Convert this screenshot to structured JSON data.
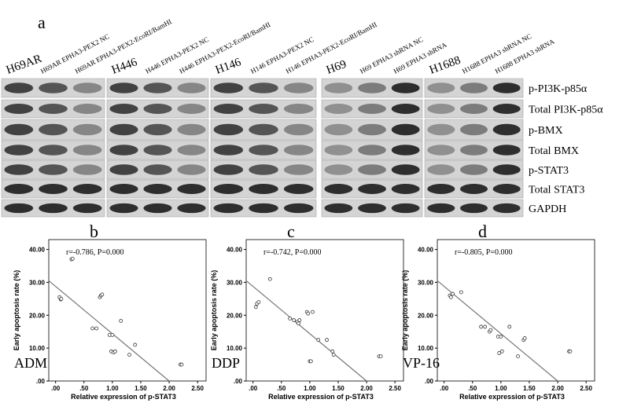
{
  "panel_label": "a",
  "blot": {
    "groups": [
      {
        "headers": [
          "H69AR",
          "H69AR EPHA3-PEX2 NC",
          "H69AR EPHA3-PEX2-EcoRI/BamHI"
        ]
      },
      {
        "headers": [
          "H446",
          "H446 EPHA3-PEX2 NC",
          "H446 EPHA3-PEX2-EcoRI/BamHI"
        ]
      },
      {
        "headers": [
          "H146",
          "H146 EPHA3-PEX2 NC",
          "H146 EPHA3-PEX2-EcoRI/BamHI"
        ]
      },
      {
        "headers": [
          "H69",
          "H69 EPHA3 shRNA NC",
          "H69 EPHA3 shRNA"
        ]
      },
      {
        "headers": [
          "H1688",
          "H1688 EPHA3 shRNA NC",
          "H1688 EPHA3 shRNA"
        ]
      }
    ],
    "rows": [
      "p-PI3K-p85α",
      "Total PI3K-p85α",
      "p-BMX",
      "Total BMX",
      "p-STAT3",
      "Total STAT3",
      "GAPDH"
    ]
  },
  "chart_data": [
    {
      "type": "scatter",
      "title": "b",
      "drug": "ADM",
      "annotation": "r=-0.786, P=0.000",
      "x_label": "Relative expression of p-STAT3",
      "y_label": "Early apoptosis rate (%)",
      "x": [
        0.07,
        0.09,
        0.1,
        0.28,
        0.3,
        0.65,
        0.72,
        0.78,
        0.8,
        0.82,
        0.95,
        0.98,
        1.0,
        1.02,
        1.05,
        1.15,
        1.3,
        1.4,
        2.2,
        2.22
      ],
      "values": [
        25.5,
        24.8,
        25,
        37,
        37.2,
        16,
        16,
        25.5,
        26,
        26.3,
        14,
        9,
        14,
        8.7,
        9,
        18.3,
        8,
        11,
        5,
        5
      ],
      "fit_line": {
        "x": [
          -0.12,
          2.0
        ],
        "y": [
          30.5,
          0
        ]
      },
      "xlim": [
        -0.12,
        2.65
      ],
      "ylim": [
        0,
        43
      ],
      "xticks": [
        {
          "value": 0,
          "label": ".00"
        },
        {
          "value": 0.5,
          "label": ".50"
        },
        {
          "value": 1,
          "label": "1.00"
        },
        {
          "value": 1.5,
          "label": "1.50"
        },
        {
          "value": 2,
          "label": "2.00"
        },
        {
          "value": 2.5,
          "label": "2.50"
        }
      ],
      "yticks": [
        {
          "value": 0,
          "label": ".00"
        },
        {
          "value": 10,
          "label": "10.00"
        },
        {
          "value": 20,
          "label": "20.00"
        },
        {
          "value": 30,
          "label": "30.00"
        },
        {
          "value": 40,
          "label": "40.00"
        }
      ]
    },
    {
      "type": "scatter",
      "title": "c",
      "drug": "DDP",
      "annotation": "r=-0.742, P=0.000",
      "x_label": "Relative expression of p-STAT3",
      "y_label": "Early apoptosis rate (%)",
      "x": [
        0.05,
        0.07,
        0.1,
        0.3,
        0.65,
        0.72,
        0.78,
        0.8,
        0.82,
        0.95,
        0.97,
        1.0,
        1.02,
        1.05,
        1.15,
        1.3,
        1.4,
        1.42,
        2.22,
        2.25
      ],
      "values": [
        22.5,
        23.5,
        24,
        31,
        19,
        18.5,
        18,
        17.5,
        18.5,
        21,
        20.5,
        6,
        6,
        21,
        12.5,
        12.5,
        9,
        8,
        7.5,
        7.5
      ],
      "fit_line": {
        "x": [
          -0.12,
          2.0
        ],
        "y": [
          30.5,
          0
        ]
      },
      "xlim": [
        -0.12,
        2.65
      ],
      "ylim": [
        0,
        43
      ],
      "xticks": [
        {
          "value": 0,
          "label": ".00"
        },
        {
          "value": 0.5,
          "label": ".50"
        },
        {
          "value": 1,
          "label": "1.00"
        },
        {
          "value": 1.5,
          "label": "1.50"
        },
        {
          "value": 2,
          "label": "2.00"
        },
        {
          "value": 2.5,
          "label": "2.50"
        }
      ],
      "yticks": [
        {
          "value": 0,
          "label": ".00"
        },
        {
          "value": 10,
          "label": "10.00"
        },
        {
          "value": 20,
          "label": "20.00"
        },
        {
          "value": 30,
          "label": "30.00"
        },
        {
          "value": 40,
          "label": "40.00"
        }
      ]
    },
    {
      "type": "scatter",
      "title": "d",
      "drug": "VP-16",
      "annotation": "r=-0.805, P=0.000",
      "x_label": "Relative expression of p-STAT3",
      "y_label": "Early apoptosis rate (%)",
      "x": [
        0.1,
        0.12,
        0.15,
        0.3,
        0.65,
        0.72,
        0.8,
        0.82,
        0.95,
        0.97,
        1.0,
        1.02,
        1.15,
        1.3,
        1.4,
        1.42,
        2.2,
        2.22
      ],
      "values": [
        26,
        25.5,
        26.5,
        27,
        16.5,
        16.5,
        15,
        15.5,
        13.5,
        8.5,
        13.5,
        9,
        16.5,
        7.5,
        12.5,
        13,
        9,
        9
      ],
      "fit_line": {
        "x": [
          -0.12,
          2.0
        ],
        "y": [
          30.5,
          0
        ]
      },
      "xlim": [
        -0.12,
        2.65
      ],
      "ylim": [
        0,
        43
      ],
      "xticks": [
        {
          "value": 0,
          "label": ".00"
        },
        {
          "value": 0.5,
          "label": ".50"
        },
        {
          "value": 1,
          "label": "1.00"
        },
        {
          "value": 1.5,
          "label": "1.50"
        },
        {
          "value": 2,
          "label": "2.00"
        },
        {
          "value": 2.5,
          "label": "2.50"
        }
      ],
      "yticks": [
        {
          "value": 0,
          "label": ".00"
        },
        {
          "value": 10,
          "label": "10.00"
        },
        {
          "value": 20,
          "label": "20.00"
        },
        {
          "value": 30,
          "label": "30.00"
        },
        {
          "value": 40,
          "label": "40.00"
        }
      ]
    }
  ]
}
